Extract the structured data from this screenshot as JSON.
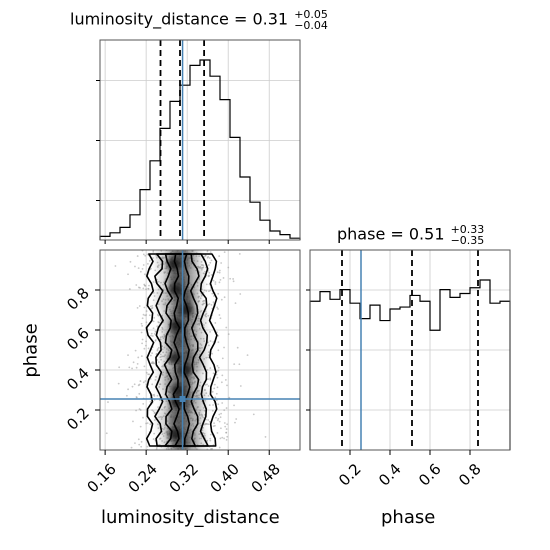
{
  "chart_data": {
    "type": "corner",
    "parameters": [
      {
        "name": "luminosity_distance",
        "title": "luminosity_distance",
        "median": "0.31",
        "plus": "+0.05",
        "minus": "−0.04",
        "quantiles": [
          0.268,
          0.306,
          0.353
        ],
        "truth": 0.311,
        "range": [
          0.15,
          0.54
        ],
        "ticks": [
          "0.16",
          "0.24",
          "0.32",
          "0.40",
          "0.48"
        ],
        "hist_edges_start": 0.15,
        "hist_bin_width": 0.0195,
        "hist_values": [
          0.02,
          0.04,
          0.07,
          0.14,
          0.28,
          0.44,
          0.62,
          0.77,
          0.86,
          0.97,
          1.0,
          0.91,
          0.78,
          0.57,
          0.35,
          0.21,
          0.11,
          0.05,
          0.03,
          0.01
        ]
      },
      {
        "name": "phase",
        "title": "phase",
        "median": "0.51",
        "plus": "+0.33",
        "minus": "−0.35",
        "quantiles": [
          0.16,
          0.51,
          0.84
        ],
        "truth": 0.255,
        "range": [
          0.0,
          1.0
        ],
        "ticks": [
          "0.2",
          "0.4",
          "0.6",
          "0.8"
        ],
        "hist_edges_start": 0.0,
        "hist_bin_width": 0.05,
        "hist_values": [
          0.77,
          0.82,
          0.78,
          0.83,
          0.76,
          0.68,
          0.75,
          0.67,
          0.73,
          0.74,
          0.8,
          0.77,
          0.62,
          0.83,
          0.79,
          0.81,
          0.84,
          0.88,
          0.76,
          0.77
        ]
      }
    ],
    "truth_point": [
      0.311,
      0.255
    ],
    "grid": true,
    "line_color": "#4682b4",
    "hist_color": "#000000"
  }
}
